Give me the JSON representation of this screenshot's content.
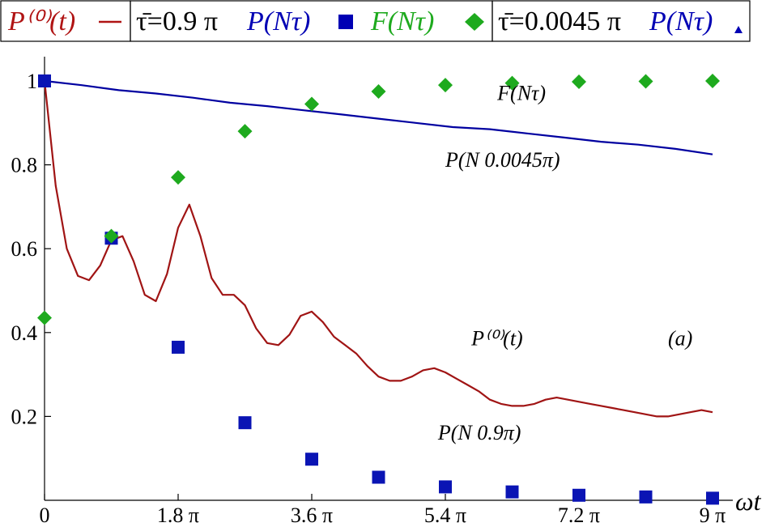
{
  "chart_data": {
    "type": "line",
    "legend": {
      "placement": "top",
      "groups": [
        {
          "items": [
            {
              "label": "P⁽⁰⁾(t)",
              "marker": "line",
              "color": "#b01414"
            }
          ]
        },
        {
          "prefix": "τ̄=0.9 π",
          "items": [
            {
              "label": "P(Nτ)",
              "marker": "square",
              "color": "#0000b4"
            },
            {
              "label": "F(Nτ)",
              "marker": "diamond",
              "color": "#1eaa1e"
            }
          ]
        },
        {
          "prefix": "τ̄=0.0045 π",
          "items": [
            {
              "label": "P(Nτ)",
              "marker": "triangle",
              "color": "#0000b4"
            }
          ]
        }
      ]
    },
    "xlabel": "ωt",
    "ylabel": "",
    "xlim": [
      0,
      9
    ],
    "ylim": [
      0,
      1
    ],
    "x_unit": "π",
    "x_ticks": [
      0,
      1.8,
      3.6,
      5.4,
      7.2,
      9
    ],
    "x_tick_labels": [
      "0",
      "1.8 π",
      "3.6 π",
      "5.4 π",
      "7.2 π",
      "9 π"
    ],
    "y_ticks": [
      0.2,
      0.4,
      0.6,
      0.8,
      1
    ],
    "y_tick_labels": [
      "0.2",
      "0.4",
      "0.6",
      "0.8",
      "1"
    ],
    "grid": false,
    "series": [
      {
        "label_ref": "P(N 0.0045π)",
        "kind": "line",
        "color": "#0000a0",
        "x": [
          0,
          0.5,
          1,
          1.5,
          2,
          2.5,
          3,
          3.5,
          4,
          4.5,
          5,
          5.5,
          6,
          6.5,
          7,
          7.5,
          8,
          8.5,
          9
        ],
        "y": [
          1.0,
          0.99,
          0.978,
          0.97,
          0.96,
          0.948,
          0.94,
          0.93,
          0.92,
          0.91,
          0.9,
          0.89,
          0.885,
          0.875,
          0.865,
          0.855,
          0.848,
          0.838,
          0.825
        ]
      },
      {
        "label_ref": "P⁽⁰⁾(t)",
        "kind": "line",
        "color": "#a01414",
        "x": [
          0,
          0.15,
          0.3,
          0.45,
          0.6,
          0.75,
          0.9,
          1.05,
          1.2,
          1.35,
          1.5,
          1.65,
          1.8,
          1.95,
          2.1,
          2.25,
          2.4,
          2.55,
          2.7,
          2.85,
          3.0,
          3.15,
          3.3,
          3.45,
          3.6,
          3.75,
          3.9,
          4.05,
          4.2,
          4.35,
          4.5,
          4.65,
          4.8,
          4.95,
          5.1,
          5.25,
          5.4,
          5.55,
          5.7,
          5.85,
          6.0,
          6.15,
          6.3,
          6.45,
          6.6,
          6.75,
          6.9,
          7.05,
          7.2,
          7.35,
          7.5,
          7.65,
          7.8,
          7.95,
          8.1,
          8.25,
          8.4,
          8.55,
          8.7,
          8.85,
          9.0
        ],
        "y": [
          1.0,
          0.75,
          0.6,
          0.535,
          0.525,
          0.56,
          0.62,
          0.63,
          0.57,
          0.49,
          0.475,
          0.54,
          0.65,
          0.705,
          0.63,
          0.53,
          0.49,
          0.49,
          0.465,
          0.41,
          0.375,
          0.37,
          0.395,
          0.44,
          0.45,
          0.425,
          0.39,
          0.37,
          0.35,
          0.32,
          0.295,
          0.285,
          0.285,
          0.295,
          0.31,
          0.315,
          0.305,
          0.29,
          0.275,
          0.26,
          0.24,
          0.23,
          0.225,
          0.225,
          0.23,
          0.24,
          0.245,
          0.24,
          0.235,
          0.23,
          0.225,
          0.22,
          0.215,
          0.21,
          0.205,
          0.2,
          0.2,
          0.205,
          0.21,
          0.215,
          0.21
        ]
      },
      {
        "label_ref": "P(N 0.9π)",
        "kind": "square",
        "color": "#0a14b4",
        "x": [
          0,
          0.9,
          1.8,
          2.7,
          3.6,
          4.5,
          5.4,
          6.3,
          7.2,
          8.1,
          9.0
        ],
        "y": [
          1.0,
          0.625,
          0.365,
          0.185,
          0.098,
          0.055,
          0.032,
          0.02,
          0.012,
          0.008,
          0.005
        ]
      },
      {
        "label_ref": "F(Nτ)",
        "kind": "diamond",
        "color": "#1eaa1e",
        "x": [
          0,
          0.9,
          1.8,
          2.7,
          3.6,
          4.5,
          5.4,
          6.3,
          7.2,
          8.1,
          9.0
        ],
        "y": [
          0.435,
          0.63,
          0.77,
          0.88,
          0.945,
          0.975,
          0.99,
          0.995,
          0.998,
          0.999,
          1.0
        ]
      }
    ],
    "annotations": [
      {
        "text": "F(Nτ)",
        "x": 6.1,
        "y": 0.955
      },
      {
        "text": "P(N 0.0045π)",
        "x": 5.4,
        "y": 0.795
      },
      {
        "text": "P⁽⁰⁾(t)",
        "x": 5.75,
        "y": 0.37
      },
      {
        "text": "P(N 0.9π)",
        "x": 5.3,
        "y": 0.145
      },
      {
        "text": "(a)",
        "x": 8.4,
        "y": 0.37
      }
    ]
  }
}
